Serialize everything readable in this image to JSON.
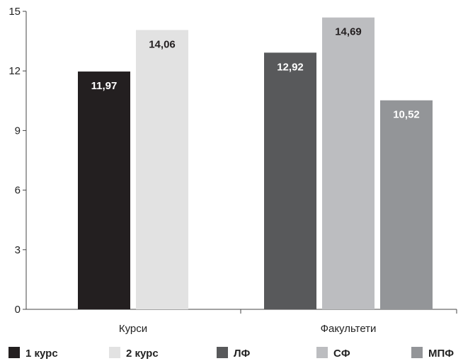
{
  "chart_data": {
    "type": "bar",
    "ylim": [
      0,
      15
    ],
    "yticks": [
      0,
      3,
      6,
      9,
      12,
      15
    ],
    "grid": false,
    "legend_placement": "bottom",
    "groups": [
      {
        "label": "Курси",
        "bars": [
          {
            "series": "1 курс",
            "value": 11.97,
            "label": "11,97",
            "color": "#231f20",
            "label_color": "#ffffff"
          },
          {
            "series": "2 курс",
            "value": 14.06,
            "label": "14,06",
            "color": "#e2e2e2",
            "label_color": "#231f20"
          }
        ]
      },
      {
        "label": "Факультети",
        "bars": [
          {
            "series": "ЛФ",
            "value": 12.92,
            "label": "12,92",
            "color": "#58595b",
            "label_color": "#ffffff"
          },
          {
            "series": "СФ",
            "value": 14.69,
            "label": "14,69",
            "color": "#bcbdc0",
            "label_color": "#231f20"
          },
          {
            "series": "МПФ",
            "value": 10.52,
            "label": "10,52",
            "color": "#939598",
            "label_color": "#ffffff"
          }
        ]
      }
    ],
    "legend": [
      {
        "name": "1 курс",
        "color": "#231f20"
      },
      {
        "name": "2 курс",
        "color": "#e2e2e2"
      },
      {
        "name": "ЛФ",
        "color": "#58595b"
      },
      {
        "name": "СФ",
        "color": "#bcbdc0"
      },
      {
        "name": "МПФ",
        "color": "#939598"
      }
    ]
  }
}
